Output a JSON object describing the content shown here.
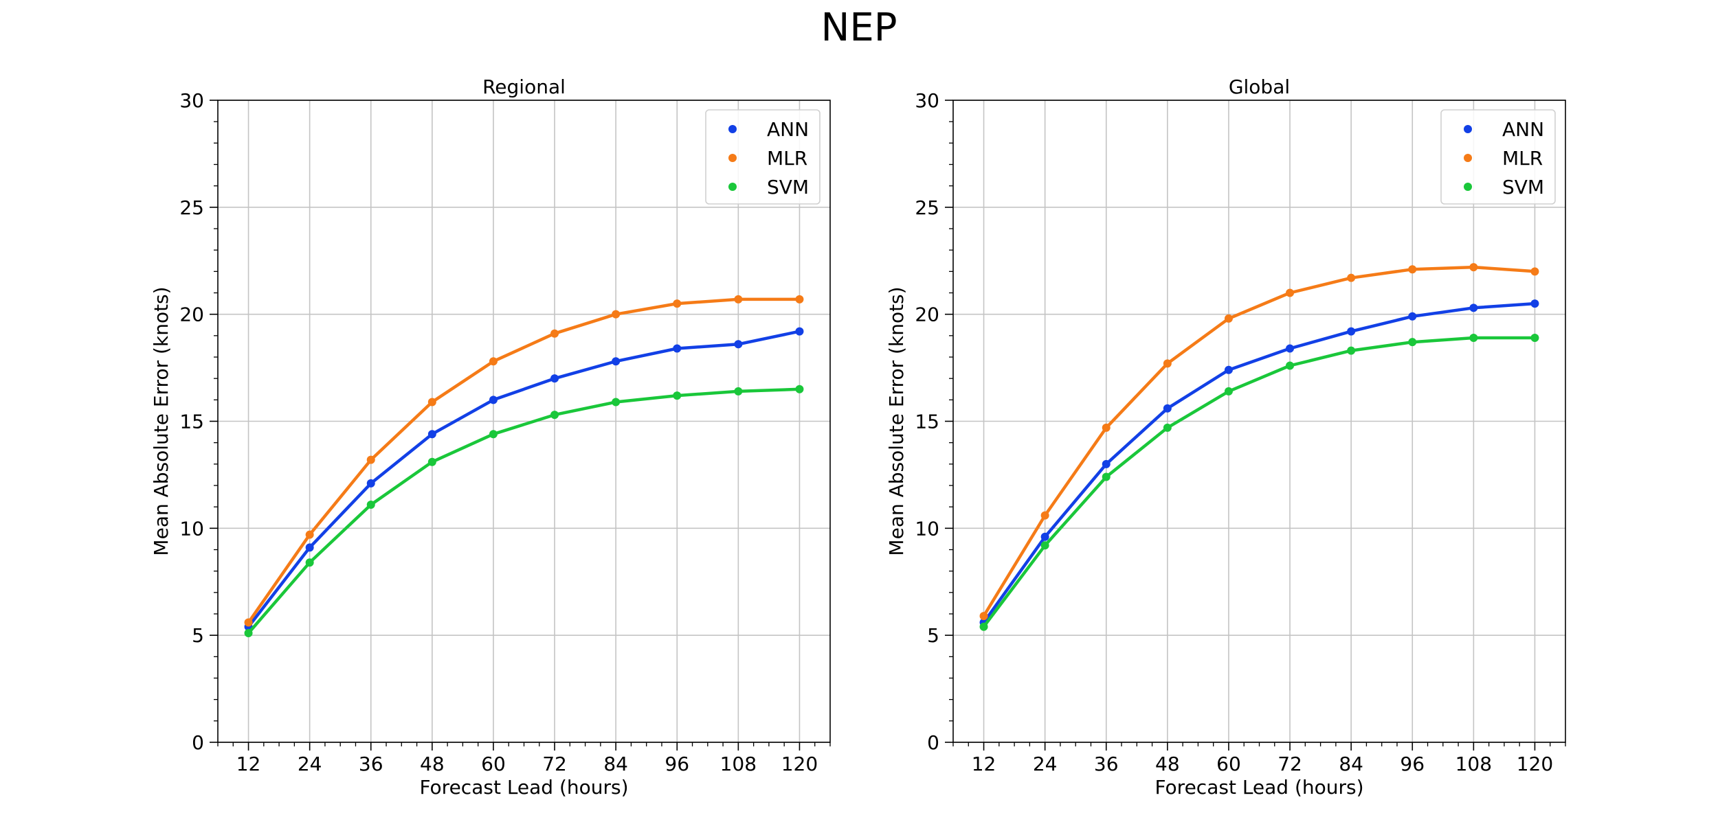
{
  "figure": {
    "title": "NEP"
  },
  "chart_data": [
    {
      "type": "line",
      "title": "Regional",
      "xlabel": "Forecast Lead (hours)",
      "ylabel": "Mean Absolute Error (knots)",
      "x": [
        12,
        24,
        36,
        48,
        60,
        72,
        84,
        96,
        108,
        120
      ],
      "xlim": [
        6,
        126
      ],
      "ylim": [
        0,
        30
      ],
      "xticks": [
        12,
        24,
        36,
        48,
        60,
        72,
        84,
        96,
        108,
        120
      ],
      "yticks": [
        0,
        5,
        10,
        15,
        20,
        25,
        30
      ],
      "grid": true,
      "legend_position": "top-right",
      "series": [
        {
          "name": "ANN",
          "color": "#1240e6",
          "values": [
            5.4,
            9.1,
            12.1,
            14.4,
            16.0,
            17.0,
            17.8,
            18.4,
            18.6,
            19.2
          ]
        },
        {
          "name": "MLR",
          "color": "#f57b17",
          "values": [
            5.6,
            9.7,
            13.2,
            15.9,
            17.8,
            19.1,
            20.0,
            20.5,
            20.7,
            20.7
          ]
        },
        {
          "name": "SVM",
          "color": "#1ac73a",
          "values": [
            5.1,
            8.4,
            11.1,
            13.1,
            14.4,
            15.3,
            15.9,
            16.2,
            16.4,
            16.5
          ]
        }
      ]
    },
    {
      "type": "line",
      "title": "Global",
      "xlabel": "Forecast Lead (hours)",
      "ylabel": "Mean Absolute Error (knots)",
      "x": [
        12,
        24,
        36,
        48,
        60,
        72,
        84,
        96,
        108,
        120
      ],
      "xlim": [
        6,
        126
      ],
      "ylim": [
        0,
        30
      ],
      "xticks": [
        12,
        24,
        36,
        48,
        60,
        72,
        84,
        96,
        108,
        120
      ],
      "yticks": [
        0,
        5,
        10,
        15,
        20,
        25,
        30
      ],
      "grid": true,
      "legend_position": "top-right",
      "series": [
        {
          "name": "ANN",
          "color": "#1240e6",
          "values": [
            5.6,
            9.6,
            13.0,
            15.6,
            17.4,
            18.4,
            19.2,
            19.9,
            20.3,
            20.5
          ]
        },
        {
          "name": "MLR",
          "color": "#f57b17",
          "values": [
            5.9,
            10.6,
            14.7,
            17.7,
            19.8,
            21.0,
            21.7,
            22.1,
            22.2,
            22.0
          ]
        },
        {
          "name": "SVM",
          "color": "#1ac73a",
          "values": [
            5.4,
            9.2,
            12.4,
            14.7,
            16.4,
            17.6,
            18.3,
            18.7,
            18.9,
            18.9
          ]
        }
      ]
    }
  ]
}
